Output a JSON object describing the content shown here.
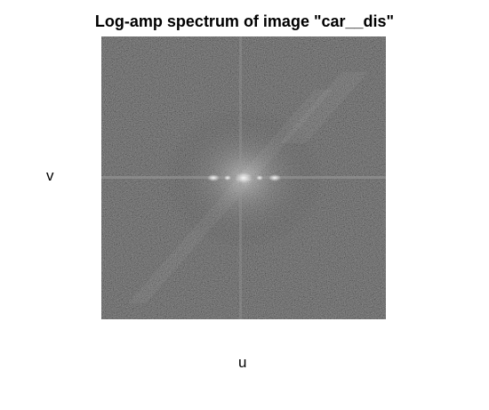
{
  "figure": {
    "title": "Log-amp spectrum of image \"car__dis\"",
    "xlabel": "u",
    "ylabel": "v"
  }
}
